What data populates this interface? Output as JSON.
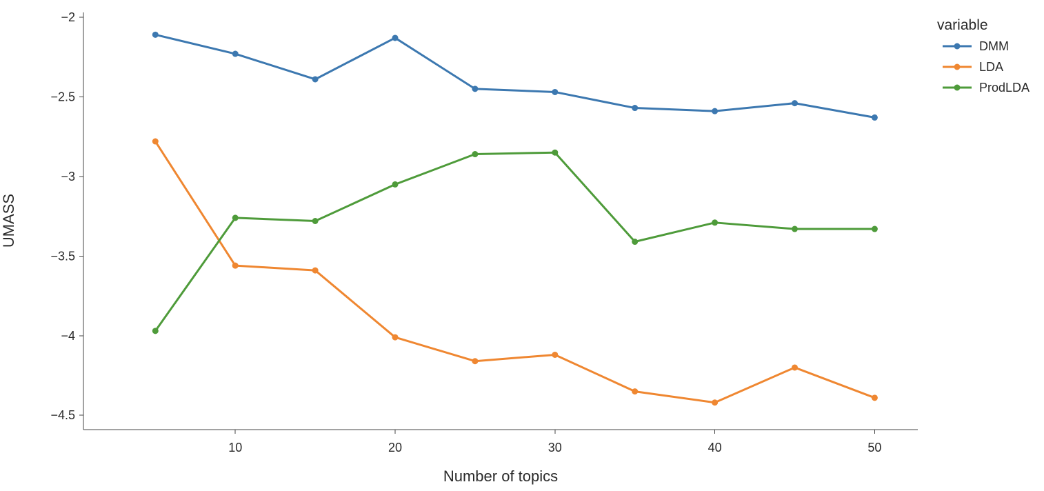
{
  "chart_data": {
    "type": "line",
    "x": [
      5,
      10,
      15,
      20,
      25,
      30,
      35,
      40,
      45,
      50
    ],
    "xlabel": "Number of topics",
    "ylabel": "UMASS",
    "xlim": [
      0.5,
      52.7
    ],
    "ylim": [
      -4.59,
      -1.97
    ],
    "xticks": [
      10,
      20,
      30,
      40,
      50
    ],
    "yticks": [
      -2,
      -2.5,
      -3,
      -3.5,
      -4,
      -4.5
    ],
    "ytick_labels": [
      "−2",
      "−2.5",
      "−3",
      "−3.5",
      "−4",
      "−4.5"
    ],
    "grid": false,
    "legend_title": "variable",
    "legend_position": "top-right",
    "series": [
      {
        "name": "DMM",
        "color": "#3c78b0",
        "values": [
          -2.11,
          -2.23,
          -2.39,
          -2.13,
          -2.45,
          -2.47,
          -2.57,
          -2.59,
          -2.54,
          -2.63
        ]
      },
      {
        "name": "LDA",
        "color": "#ef8731",
        "values": [
          -2.78,
          -3.56,
          -3.59,
          -4.01,
          -4.16,
          -4.12,
          -4.35,
          -4.42,
          -4.2,
          -4.39
        ]
      },
      {
        "name": "ProdLDA",
        "color": "#4e9b3a",
        "values": [
          -3.97,
          -3.26,
          -3.28,
          -3.05,
          -2.86,
          -2.85,
          -3.41,
          -3.29,
          -3.33,
          -3.33
        ]
      }
    ]
  }
}
